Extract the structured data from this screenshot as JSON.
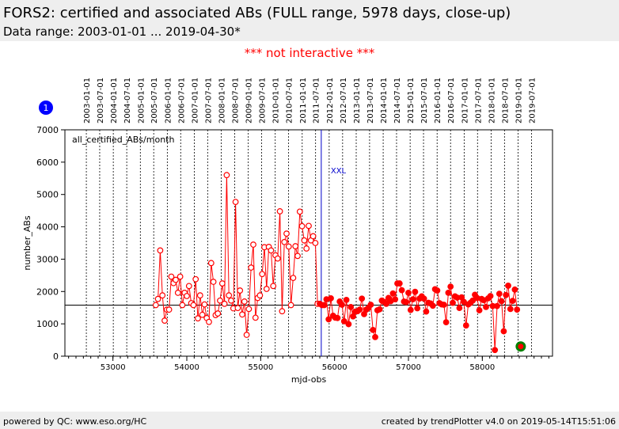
{
  "header": {
    "title": "FORS2: certified and associated ABs (FULL range, 5978 days, close-up)",
    "subtitle": "Data range: 2003-01-01 ... 2019-04-30*"
  },
  "notice": "*** not interactive ***",
  "badge": {
    "label": "1",
    "color": "#0000ff"
  },
  "footer": {
    "left": "powered by QC: www.eso.org/HC",
    "right": "created by trendPlotter v4.0 on 2019-05-14T15:51:06"
  },
  "colors": {
    "old": "#ff0000",
    "new": "#ff0000",
    "last": "#008000",
    "event": "#0000cc",
    "ref": "#000000"
  },
  "chart_data": {
    "type": "line",
    "title": "all_certified_ABs/month",
    "xlabel": "mjd-obs",
    "ylabel": "number_ABs",
    "xlim": [
      52350,
      58950
    ],
    "ylim": [
      0,
      7000
    ],
    "x_ticks": [
      53000,
      54000,
      55000,
      56000,
      57000,
      58000
    ],
    "y_ticks": [
      0,
      1000,
      2000,
      3000,
      4000,
      5000,
      6000,
      7000
    ],
    "reference_line": 1580,
    "event": {
      "label": "XXL",
      "mjd": 55820
    },
    "date_ticks": [
      {
        "label": "2003-01-01",
        "mjd": 52640
      },
      {
        "label": "2003-07-01",
        "mjd": 52821
      },
      {
        "label": "2004-01-01",
        "mjd": 53005
      },
      {
        "label": "2004-07-01",
        "mjd": 53187
      },
      {
        "label": "2005-01-01",
        "mjd": 53371
      },
      {
        "label": "2005-07-01",
        "mjd": 53552
      },
      {
        "label": "2006-01-01",
        "mjd": 53736
      },
      {
        "label": "2006-07-01",
        "mjd": 53917
      },
      {
        "label": "2007-01-01",
        "mjd": 54101
      },
      {
        "label": "2007-07-01",
        "mjd": 54282
      },
      {
        "label": "2008-01-01",
        "mjd": 54466
      },
      {
        "label": "2008-07-01",
        "mjd": 54648
      },
      {
        "label": "2009-01-01",
        "mjd": 54832
      },
      {
        "label": "2009-07-01",
        "mjd": 55013
      },
      {
        "label": "2010-01-01",
        "mjd": 55197
      },
      {
        "label": "2010-07-01",
        "mjd": 55378
      },
      {
        "label": "2011-01-01",
        "mjd": 55562
      },
      {
        "label": "2011-07-01",
        "mjd": 55743
      },
      {
        "label": "2012-01-01",
        "mjd": 55927
      },
      {
        "label": "2012-07-01",
        "mjd": 56109
      },
      {
        "label": "2013-01-01",
        "mjd": 56293
      },
      {
        "label": "2013-07-01",
        "mjd": 56474
      },
      {
        "label": "2014-01-01",
        "mjd": 56658
      },
      {
        "label": "2014-07-01",
        "mjd": 56839
      },
      {
        "label": "2015-01-01",
        "mjd": 57023
      },
      {
        "label": "2015-07-01",
        "mjd": 57204
      },
      {
        "label": "2016-01-01",
        "mjd": 57388
      },
      {
        "label": "2016-07-01",
        "mjd": 57570
      },
      {
        "label": "2017-01-01",
        "mjd": 57754
      },
      {
        "label": "2017-07-01",
        "mjd": 57935
      },
      {
        "label": "2018-01-01",
        "mjd": 58119
      },
      {
        "label": "2018-07-01",
        "mjd": 58300
      },
      {
        "label": "2019-01-01",
        "mjd": 58484
      },
      {
        "label": "2019-07-01",
        "mjd": 58665
      }
    ],
    "series": [
      {
        "name": "monthly counts (open markers)",
        "marker": "open",
        "points": [
          [
            53580,
            1580
          ],
          [
            53610,
            1770
          ],
          [
            53640,
            3270
          ],
          [
            53670,
            1880
          ],
          [
            53700,
            1100
          ],
          [
            53730,
            1440
          ],
          [
            53760,
            1440
          ],
          [
            53790,
            2460
          ],
          [
            53820,
            2260
          ],
          [
            53850,
            2360
          ],
          [
            53880,
            1960
          ],
          [
            53910,
            2460
          ],
          [
            53940,
            1580
          ],
          [
            53970,
            1960
          ],
          [
            54000,
            1860
          ],
          [
            54030,
            2170
          ],
          [
            54060,
            1640
          ],
          [
            54090,
            1580
          ],
          [
            54120,
            2380
          ],
          [
            54150,
            1170
          ],
          [
            54180,
            1880
          ],
          [
            54210,
            1280
          ],
          [
            54240,
            1600
          ],
          [
            54270,
            1180
          ],
          [
            54300,
            1060
          ],
          [
            54330,
            2880
          ],
          [
            54360,
            2300
          ],
          [
            54390,
            1270
          ],
          [
            54420,
            1320
          ],
          [
            54450,
            1720
          ],
          [
            54480,
            2250
          ],
          [
            54510,
            1620
          ],
          [
            54540,
            5600
          ],
          [
            54570,
            1880
          ],
          [
            54600,
            1720
          ],
          [
            54630,
            1480
          ],
          [
            54660,
            4770
          ],
          [
            54690,
            1490
          ],
          [
            54720,
            2030
          ],
          [
            54750,
            1290
          ],
          [
            54780,
            1690
          ],
          [
            54810,
            660
          ],
          [
            54840,
            1460
          ],
          [
            54870,
            2740
          ],
          [
            54900,
            3450
          ],
          [
            54930,
            1190
          ],
          [
            54960,
            1800
          ],
          [
            54990,
            1880
          ],
          [
            55020,
            2540
          ],
          [
            55050,
            3370
          ],
          [
            55080,
            2080
          ],
          [
            55110,
            3380
          ],
          [
            55140,
            3270
          ],
          [
            55170,
            2170
          ],
          [
            55200,
            3120
          ],
          [
            55230,
            3020
          ],
          [
            55260,
            4480
          ],
          [
            55290,
            1390
          ],
          [
            55320,
            3530
          ],
          [
            55350,
            3790
          ],
          [
            55380,
            3390
          ],
          [
            55410,
            1580
          ],
          [
            55440,
            2420
          ],
          [
            55470,
            3400
          ],
          [
            55500,
            3100
          ],
          [
            55530,
            4470
          ],
          [
            55560,
            4020
          ],
          [
            55590,
            3580
          ],
          [
            55620,
            3330
          ],
          [
            55650,
            4030
          ],
          [
            55680,
            3580
          ],
          [
            55710,
            3710
          ],
          [
            55740,
            3500
          ],
          [
            55770,
            1620
          ]
        ]
      },
      {
        "name": "monthly counts (filled markers)",
        "marker": "filled",
        "points": [
          [
            55800,
            1620
          ],
          [
            55830,
            1580
          ],
          [
            55860,
            1580
          ],
          [
            55890,
            1760
          ],
          [
            55920,
            1140
          ],
          [
            55950,
            1790
          ],
          [
            55980,
            1250
          ],
          [
            56010,
            1190
          ],
          [
            56040,
            1180
          ],
          [
            56070,
            1690
          ],
          [
            56100,
            1590
          ],
          [
            56130,
            1080
          ],
          [
            56160,
            1740
          ],
          [
            56190,
            990
          ],
          [
            56220,
            1520
          ],
          [
            56250,
            1230
          ],
          [
            56280,
            1380
          ],
          [
            56310,
            1390
          ],
          [
            56340,
            1440
          ],
          [
            56370,
            1780
          ],
          [
            56400,
            1300
          ],
          [
            56430,
            1440
          ],
          [
            56460,
            1500
          ],
          [
            56490,
            1590
          ],
          [
            56520,
            810
          ],
          [
            56550,
            590
          ],
          [
            56580,
            1420
          ],
          [
            56610,
            1450
          ],
          [
            56640,
            1720
          ],
          [
            56670,
            1680
          ],
          [
            56700,
            1620
          ],
          [
            56730,
            1800
          ],
          [
            56760,
            1700
          ],
          [
            56790,
            1940
          ],
          [
            56820,
            1760
          ],
          [
            56850,
            2250
          ],
          [
            56880,
            2250
          ],
          [
            56910,
            2040
          ],
          [
            56940,
            1690
          ],
          [
            56970,
            1670
          ],
          [
            57000,
            1960
          ],
          [
            57030,
            1430
          ],
          [
            57060,
            1760
          ],
          [
            57090,
            1990
          ],
          [
            57120,
            1480
          ],
          [
            57150,
            1780
          ],
          [
            57180,
            1850
          ],
          [
            57210,
            1780
          ],
          [
            57240,
            1380
          ],
          [
            57270,
            1650
          ],
          [
            57300,
            1630
          ],
          [
            57330,
            1560
          ],
          [
            57360,
            2070
          ],
          [
            57390,
            2030
          ],
          [
            57420,
            1640
          ],
          [
            57450,
            1600
          ],
          [
            57480,
            1590
          ],
          [
            57510,
            1050
          ],
          [
            57540,
            1960
          ],
          [
            57570,
            2150
          ],
          [
            57600,
            1650
          ],
          [
            57630,
            1850
          ],
          [
            57660,
            1810
          ],
          [
            57690,
            1490
          ],
          [
            57720,
            1820
          ],
          [
            57750,
            1680
          ],
          [
            57780,
            950
          ],
          [
            57810,
            1600
          ],
          [
            57840,
            1650
          ],
          [
            57870,
            1720
          ],
          [
            57900,
            1900
          ],
          [
            57930,
            1800
          ],
          [
            57960,
            1420
          ],
          [
            57990,
            1770
          ],
          [
            58020,
            1730
          ],
          [
            58050,
            1520
          ],
          [
            58080,
            1790
          ],
          [
            58110,
            1860
          ],
          [
            58140,
            1550
          ],
          [
            58170,
            190
          ],
          [
            58200,
            1550
          ],
          [
            58230,
            1930
          ],
          [
            58260,
            1700
          ],
          [
            58290,
            770
          ],
          [
            58320,
            1890
          ],
          [
            58350,
            2180
          ],
          [
            58380,
            1460
          ],
          [
            58410,
            1710
          ],
          [
            58440,
            2060
          ],
          [
            58470,
            1440
          ]
        ]
      }
    ],
    "last_point": [
      58520,
      300
    ]
  }
}
